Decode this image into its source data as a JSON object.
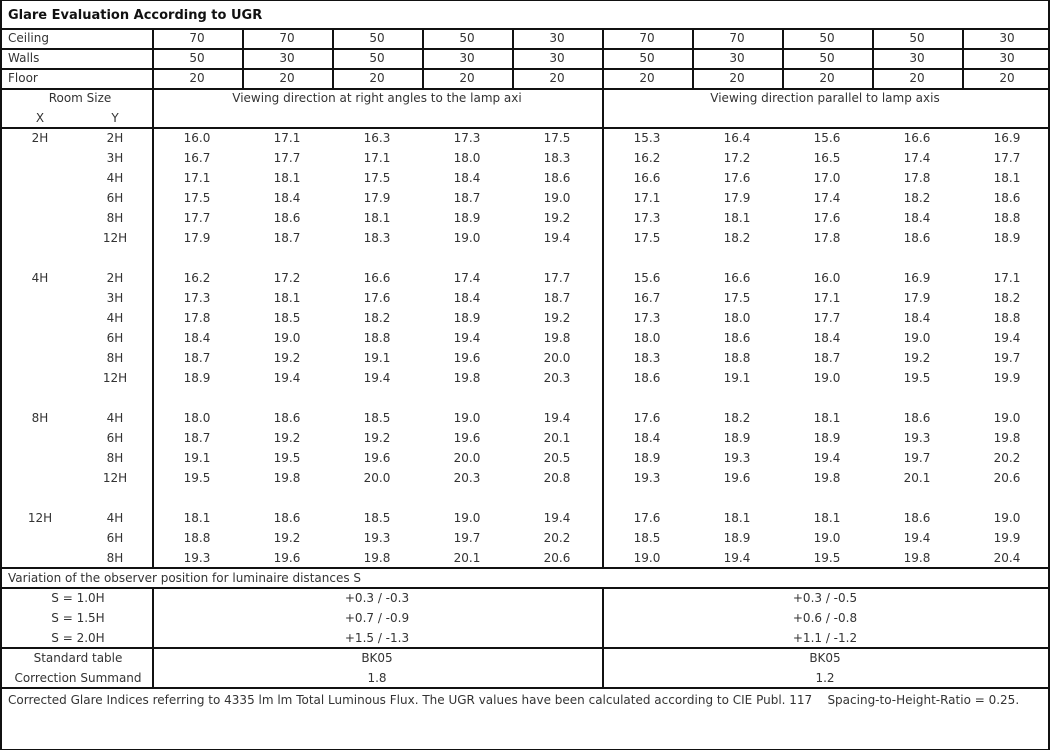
{
  "title": "Glare Evaluation According to UGR",
  "reflectances": [
    {
      "label": "Ceiling",
      "values": [
        "70",
        "70",
        "50",
        "50",
        "30",
        "70",
        "70",
        "50",
        "50",
        "30"
      ]
    },
    {
      "label": "Walls",
      "values": [
        "50",
        "30",
        "50",
        "30",
        "30",
        "50",
        "30",
        "50",
        "30",
        "30"
      ]
    },
    {
      "label": "Floor",
      "values": [
        "20",
        "20",
        "20",
        "20",
        "20",
        "20",
        "20",
        "20",
        "20",
        "20"
      ]
    }
  ],
  "room_size_label": "Room Size",
  "x_label": "X",
  "y_label": "Y",
  "direction_right_angles": "Viewing direction at right angles to the lamp axi",
  "direction_parallel": "Viewing direction parallel to lamp axis",
  "groups": [
    {
      "x": "2H",
      "rows": [
        {
          "y": "2H",
          "right": [
            "16.0",
            "17.1",
            "16.3",
            "17.3",
            "17.5"
          ],
          "parallel": [
            "15.3",
            "16.4",
            "15.6",
            "16.6",
            "16.9"
          ]
        },
        {
          "y": "3H",
          "right": [
            "16.7",
            "17.7",
            "17.1",
            "18.0",
            "18.3"
          ],
          "parallel": [
            "16.2",
            "17.2",
            "16.5",
            "17.4",
            "17.7"
          ]
        },
        {
          "y": "4H",
          "right": [
            "17.1",
            "18.1",
            "17.5",
            "18.4",
            "18.6"
          ],
          "parallel": [
            "16.6",
            "17.6",
            "17.0",
            "17.8",
            "18.1"
          ]
        },
        {
          "y": "6H",
          "right": [
            "17.5",
            "18.4",
            "17.9",
            "18.7",
            "19.0"
          ],
          "parallel": [
            "17.1",
            "17.9",
            "17.4",
            "18.2",
            "18.6"
          ]
        },
        {
          "y": "8H",
          "right": [
            "17.7",
            "18.6",
            "18.1",
            "18.9",
            "19.2"
          ],
          "parallel": [
            "17.3",
            "18.1",
            "17.6",
            "18.4",
            "18.8"
          ]
        },
        {
          "y": "12H",
          "right": [
            "17.9",
            "18.7",
            "18.3",
            "19.0",
            "19.4"
          ],
          "parallel": [
            "17.5",
            "18.2",
            "17.8",
            "18.6",
            "18.9"
          ]
        }
      ]
    },
    {
      "x": "4H",
      "rows": [
        {
          "y": "2H",
          "right": [
            "16.2",
            "17.2",
            "16.6",
            "17.4",
            "17.7"
          ],
          "parallel": [
            "15.6",
            "16.6",
            "16.0",
            "16.9",
            "17.1"
          ]
        },
        {
          "y": "3H",
          "right": [
            "17.3",
            "18.1",
            "17.6",
            "18.4",
            "18.7"
          ],
          "parallel": [
            "16.7",
            "17.5",
            "17.1",
            "17.9",
            "18.2"
          ]
        },
        {
          "y": "4H",
          "right": [
            "17.8",
            "18.5",
            "18.2",
            "18.9",
            "19.2"
          ],
          "parallel": [
            "17.3",
            "18.0",
            "17.7",
            "18.4",
            "18.8"
          ]
        },
        {
          "y": "6H",
          "right": [
            "18.4",
            "19.0",
            "18.8",
            "19.4",
            "19.8"
          ],
          "parallel": [
            "18.0",
            "18.6",
            "18.4",
            "19.0",
            "19.4"
          ]
        },
        {
          "y": "8H",
          "right": [
            "18.7",
            "19.2",
            "19.1",
            "19.6",
            "20.0"
          ],
          "parallel": [
            "18.3",
            "18.8",
            "18.7",
            "19.2",
            "19.7"
          ]
        },
        {
          "y": "12H",
          "right": [
            "18.9",
            "19.4",
            "19.4",
            "19.8",
            "20.3"
          ],
          "parallel": [
            "18.6",
            "19.1",
            "19.0",
            "19.5",
            "19.9"
          ]
        }
      ]
    },
    {
      "x": "8H",
      "rows": [
        {
          "y": "4H",
          "right": [
            "18.0",
            "18.6",
            "18.5",
            "19.0",
            "19.4"
          ],
          "parallel": [
            "17.6",
            "18.2",
            "18.1",
            "18.6",
            "19.0"
          ]
        },
        {
          "y": "6H",
          "right": [
            "18.7",
            "19.2",
            "19.2",
            "19.6",
            "20.1"
          ],
          "parallel": [
            "18.4",
            "18.9",
            "18.9",
            "19.3",
            "19.8"
          ]
        },
        {
          "y": "8H",
          "right": [
            "19.1",
            "19.5",
            "19.6",
            "20.0",
            "20.5"
          ],
          "parallel": [
            "18.9",
            "19.3",
            "19.4",
            "19.7",
            "20.2"
          ]
        },
        {
          "y": "12H",
          "right": [
            "19.5",
            "19.8",
            "20.0",
            "20.3",
            "20.8"
          ],
          "parallel": [
            "19.3",
            "19.6",
            "19.8",
            "20.1",
            "20.6"
          ]
        }
      ]
    },
    {
      "x": "12H",
      "rows": [
        {
          "y": "4H",
          "right": [
            "18.1",
            "18.6",
            "18.5",
            "19.0",
            "19.4"
          ],
          "parallel": [
            "17.6",
            "18.1",
            "18.1",
            "18.6",
            "19.0"
          ]
        },
        {
          "y": "6H",
          "right": [
            "18.8",
            "19.2",
            "19.3",
            "19.7",
            "20.2"
          ],
          "parallel": [
            "18.5",
            "18.9",
            "19.0",
            "19.4",
            "19.9"
          ]
        },
        {
          "y": "8H",
          "right": [
            "19.3",
            "19.6",
            "19.8",
            "20.1",
            "20.6"
          ],
          "parallel": [
            "19.0",
            "19.4",
            "19.5",
            "19.8",
            "20.4"
          ]
        }
      ]
    }
  ],
  "variation": {
    "title": "Variation of the observer position for luminaire distances S",
    "rows": [
      {
        "label": "S = 1.0H",
        "right": "+0.3 / -0.3",
        "parallel": "+0.3 / -0.5"
      },
      {
        "label": "S = 1.5H",
        "right": "+0.7 / -0.9",
        "parallel": "+0.6 / -0.8"
      },
      {
        "label": "S = 2.0H",
        "right": "+1.5 / -1.3",
        "parallel": "+1.1 / -1.2"
      }
    ]
  },
  "standard_table": {
    "label": "Standard table",
    "right": "BK05",
    "parallel": "BK05"
  },
  "correction_summand": {
    "label": "Correction Summand",
    "right": "1.8",
    "parallel": "1.2"
  },
  "footer": "Corrected Glare Indices referring to 4335 lm lm Total Luminous Flux. The UGR values have been calculated according to CIE Publ. 117    Spacing-to-Height-Ratio = 0.25."
}
